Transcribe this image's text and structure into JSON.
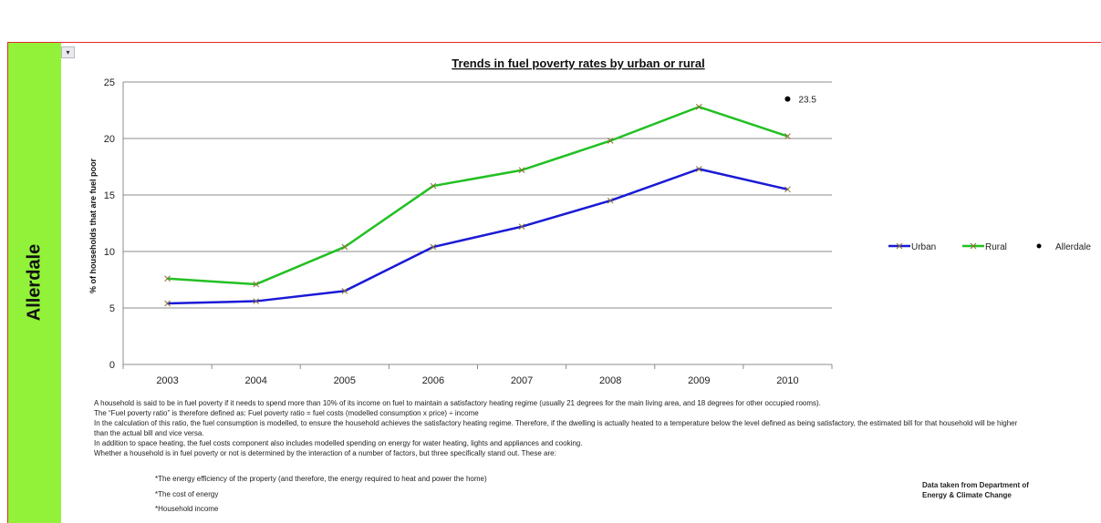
{
  "sidebar": {
    "title": "Allerdale"
  },
  "dropdown": {
    "glyph": "▾"
  },
  "chart_data": {
    "type": "line",
    "title": "Trends in fuel poverty rates by urban or rural",
    "ylabel": "% of households that are fuel poor",
    "xlabel": "",
    "categories": [
      "2003",
      "2004",
      "2005",
      "2006",
      "2007",
      "2008",
      "2009",
      "2010"
    ],
    "ylim": [
      0,
      25
    ],
    "yticks": [
      0,
      5,
      10,
      15,
      20,
      25
    ],
    "grid": true,
    "legend_position": "right",
    "series": [
      {
        "name": "Urban",
        "values": [
          5.4,
          5.6,
          6.5,
          10.4,
          12.2,
          14.5,
          17.3,
          15.5
        ],
        "color": "#1a1ad6",
        "marker": "x"
      },
      {
        "name": "Rural",
        "values": [
          7.6,
          7.1,
          10.4,
          15.8,
          17.2,
          19.8,
          22.8,
          20.2
        ],
        "color": "#22c022",
        "marker": "x"
      }
    ],
    "points": [
      {
        "name": "Allerdale",
        "category": "2010",
        "value": 23.5,
        "label": "23.5",
        "color": "#000000"
      }
    ]
  },
  "notes": {
    "paragraphs": [
      "A household is said to be in fuel poverty if it needs to spend more than 10% of its income on fuel to maintain a satisfactory heating regime (usually 21 degrees for the main living area, and 18 degrees for other occupied rooms).",
      "The “Fuel poverty ratio” is therefore defined as: Fuel poverty ratio = fuel costs (modelled consumption x price) ÷ income",
      "In the calculation of this ratio, the fuel consumption is modelled, to ensure the household achieves the satisfactory heating regime. Therefore, if the dwelling is actually heated to a temperature below the level defined as being satisfactory, the estimated bill for that household will be higher than the actual bill and vice versa.",
      "In addition to space heating, the fuel costs component also includes modelled spending on energy for water heating, lights and appliances and cooking.",
      "Whether a household is in fuel poverty or not is determined by the interaction of a number of factors, but three specifically stand out. These are:"
    ],
    "bullets": [
      "*The energy efficiency of the property (and therefore, the energy required to heat and power the home)",
      "*The cost of energy",
      "*Household income"
    ]
  },
  "source": {
    "text": "Data taken from Department of Energy & Climate Change"
  }
}
